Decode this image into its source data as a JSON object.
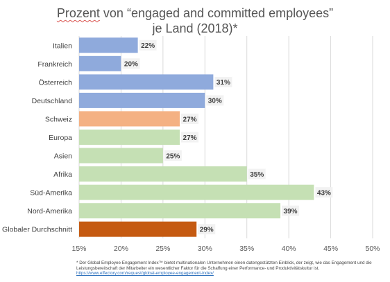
{
  "title_line1_prefix": "Prozent",
  "title_line1_rest": " von “engaged and committed employees”",
  "title_line2": "je Land (2018)*",
  "chart_data": {
    "type": "bar",
    "orientation": "horizontal",
    "title": "Prozent von “engaged and committed employees” je Land (2018)*",
    "categories": [
      "Italien",
      "Frankreich",
      "Österreich",
      "Deutschland",
      "Schweiz",
      "Europa",
      "Asien",
      "Afrika",
      "Süd-Amerika",
      "Nord-Amerika",
      "Globaler Durchschnitt"
    ],
    "values": [
      22,
      20,
      31,
      30,
      27,
      27,
      25,
      35,
      43,
      39,
      29
    ],
    "value_labels": [
      "22%",
      "20%",
      "31%",
      "30%",
      "27%",
      "27%",
      "25%",
      "35%",
      "43%",
      "39%",
      "29%"
    ],
    "bar_colors": [
      "#8faadc",
      "#8faadc",
      "#8faadc",
      "#8faadc",
      "#f4b183",
      "#c5e0b4",
      "#c5e0b4",
      "#c5e0b4",
      "#c5e0b4",
      "#c5e0b4",
      "#c55a11"
    ],
    "xlim": [
      15,
      50
    ],
    "xticks": [
      15,
      20,
      25,
      30,
      35,
      40,
      45,
      50
    ],
    "xtick_labels": [
      "15%",
      "20%",
      "25%",
      "30%",
      "35%",
      "40%",
      "45%",
      "50%"
    ],
    "grid": true,
    "xlabel": "",
    "ylabel": ""
  },
  "footnote": {
    "text": "* Der Global Employee Engagement Index™ bietet multinationalen Unternehmen einen datengestützten Einblick, der zeigt, wie das Engagement und die Leistungsbereitschaft der Mitarbeiter ein wesentlicher Faktor für die Schaffung einer Performance- und Produktivitätskultur ist.",
    "link": "https://www.effectory.com/request/global-employee-engagement-index/"
  }
}
